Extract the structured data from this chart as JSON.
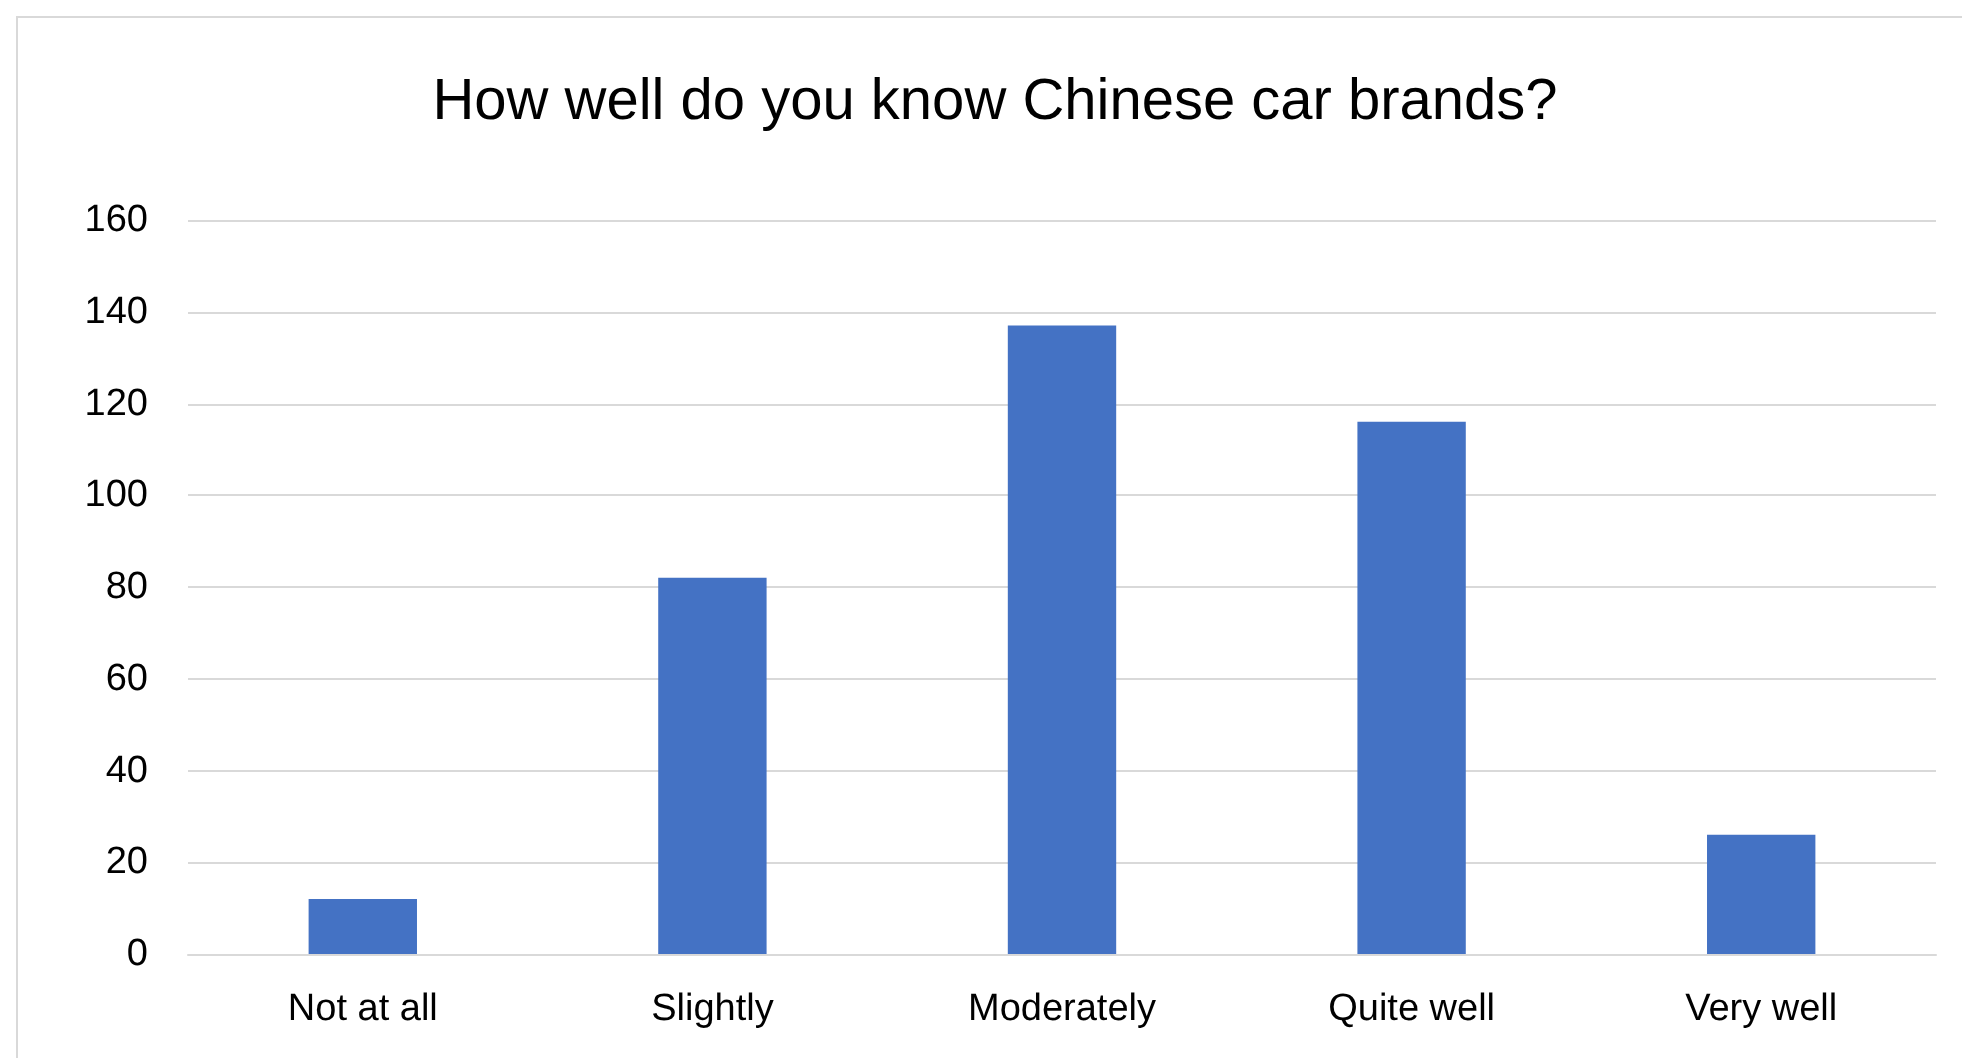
{
  "chart_data": {
    "type": "bar",
    "title": "How well do you know Chinese car brands?",
    "categories": [
      "Not at all",
      "Slightly",
      "Moderately",
      "Quite well",
      "Very well"
    ],
    "values": [
      12,
      82,
      137,
      116,
      26
    ],
    "color": "#4472c4",
    "ylim": [
      0,
      160
    ],
    "yticks": [
      0,
      20,
      40,
      60,
      80,
      100,
      120,
      140,
      160
    ],
    "grid": "y"
  }
}
